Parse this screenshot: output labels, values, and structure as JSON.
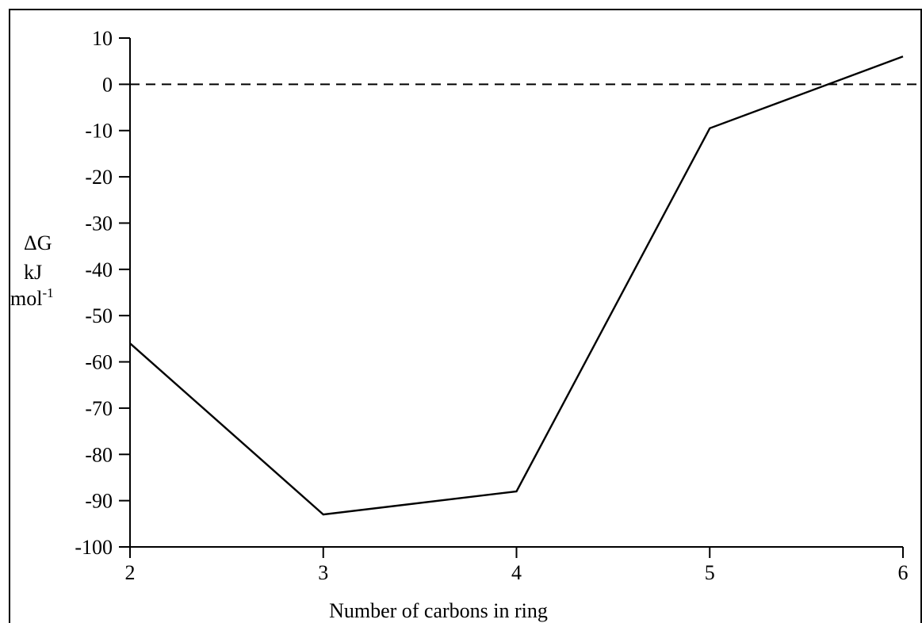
{
  "chart_data": {
    "type": "line",
    "xlabel": "Number of carbons in ring",
    "ylabel_lines": [
      "ΔG",
      "kJ",
      "mol"
    ],
    "ylabel_superscript": "-1",
    "x": [
      2,
      3,
      4,
      5,
      6
    ],
    "series": [
      {
        "values": [
          -56,
          -93,
          -88,
          -9.5,
          6
        ]
      }
    ],
    "xlim": [
      2,
      6
    ],
    "ylim": [
      -100,
      10
    ],
    "x_ticks": [
      2,
      3,
      4,
      5,
      6
    ],
    "y_ticks": [
      10,
      0,
      -10,
      -20,
      -30,
      -40,
      -50,
      -60,
      -70,
      -80,
      -90,
      -100
    ],
    "reference_line": {
      "y": 0,
      "style": "dashed"
    },
    "grid": false,
    "line_color": "#000000"
  }
}
